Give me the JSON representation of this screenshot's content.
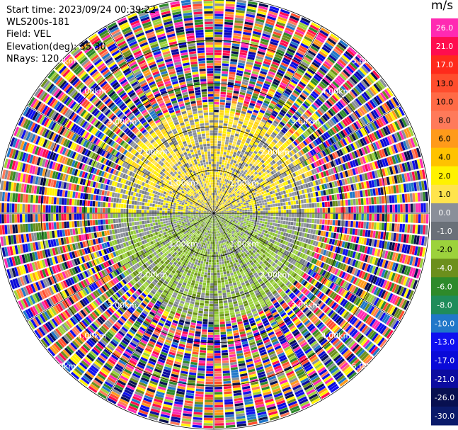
{
  "header": {
    "start_time": "Start time: 2023/09/24 00:39:22",
    "instrument": "WLS200s-181",
    "field": "Field: VEL",
    "elevation": "Elevation(deg): 35.30",
    "nrays": "NRays: 120"
  },
  "chart_data": {
    "type": "heatmap",
    "projection": "polar-ppi",
    "n_rays": 120,
    "units": "m/s",
    "range_rings_km": [
      1.0,
      2.0,
      3.0,
      4.0,
      5.0
    ],
    "ring_labels": [
      "1.00km",
      "2.00km",
      "3.00km",
      "4.00km",
      "5.00km"
    ],
    "max_range_km": 5.0,
    "colorbar": {
      "label": "m/s",
      "ticks": [
        "26.0",
        "21.0",
        "17.0",
        "13.0",
        "10.0",
        "8.0",
        "6.0",
        "4.0",
        "2.0",
        "1.0",
        "0.0",
        "-1.0",
        "-2.0",
        "-4.0",
        "-6.0",
        "-8.0",
        "-10.0",
        "-13.0",
        "-17.0",
        "-21.0",
        "-26.0",
        "-30.0"
      ],
      "colors": [
        "#ff2ab2",
        "#ff0d4e",
        "#ff2a1c",
        "#ff4d2d",
        "#ff6a45",
        "#ff7a5a",
        "#ff9a1a",
        "#ffc200",
        "#fff200",
        "#ffe44c",
        "#8a8f99",
        "#6a7078",
        "#9cd23c",
        "#6c8f1c",
        "#2e8a2a",
        "#1f8c5a",
        "#2077c9",
        "#1010f0",
        "#0a0ad8",
        "#0c0ca0",
        "#081050",
        "#0a1a6a"
      ]
    },
    "velocity_field_summary": {
      "north_sector": "positive 1 to 2 m/s (yellow)",
      "south_sector": "negative -1 to -4 m/s (green)",
      "east_west": "near 0 m/s (grey)",
      "outer_range_beyond_km": 2.5,
      "outer_range_state": "noise (random colors)"
    }
  }
}
